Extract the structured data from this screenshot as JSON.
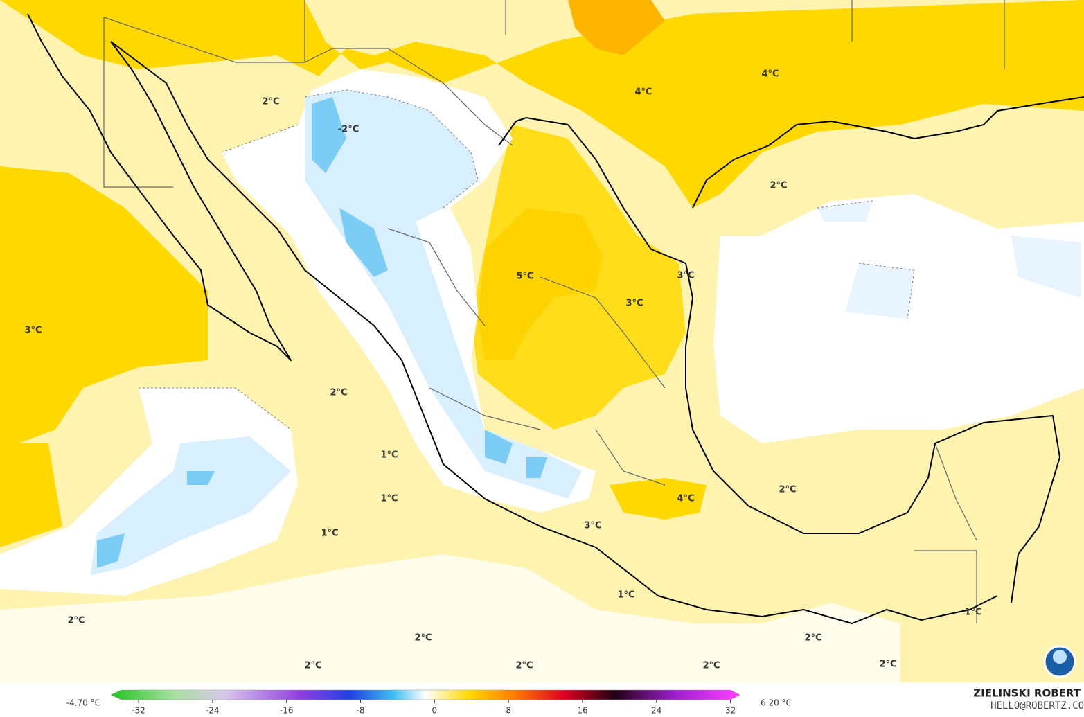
{
  "map": {
    "labels": [
      "2°C",
      "-2°C",
      "4°C",
      "4°C",
      "2°C",
      "5°C",
      "3°C",
      "3°C",
      "3°C",
      "2°C",
      "1°C",
      "1°C",
      "4°C",
      "2°C",
      "3°C",
      "1°C",
      "1°C",
      "1°C",
      "2°C",
      "2°C",
      "2°C",
      "2°C",
      "2°C",
      "2°C",
      "2°C"
    ]
  },
  "colorbar": {
    "min_label": "-4.70 °C",
    "max_label": "6.20 °C",
    "lim": [
      -35,
      33
    ],
    "ticks": [
      -32,
      -24,
      -16,
      -8,
      0,
      8,
      16,
      24,
      32
    ]
  },
  "credit": {
    "name": "ZIELINSKI ROBERT",
    "email": "HELLO@ROBERTZ.CO"
  }
}
